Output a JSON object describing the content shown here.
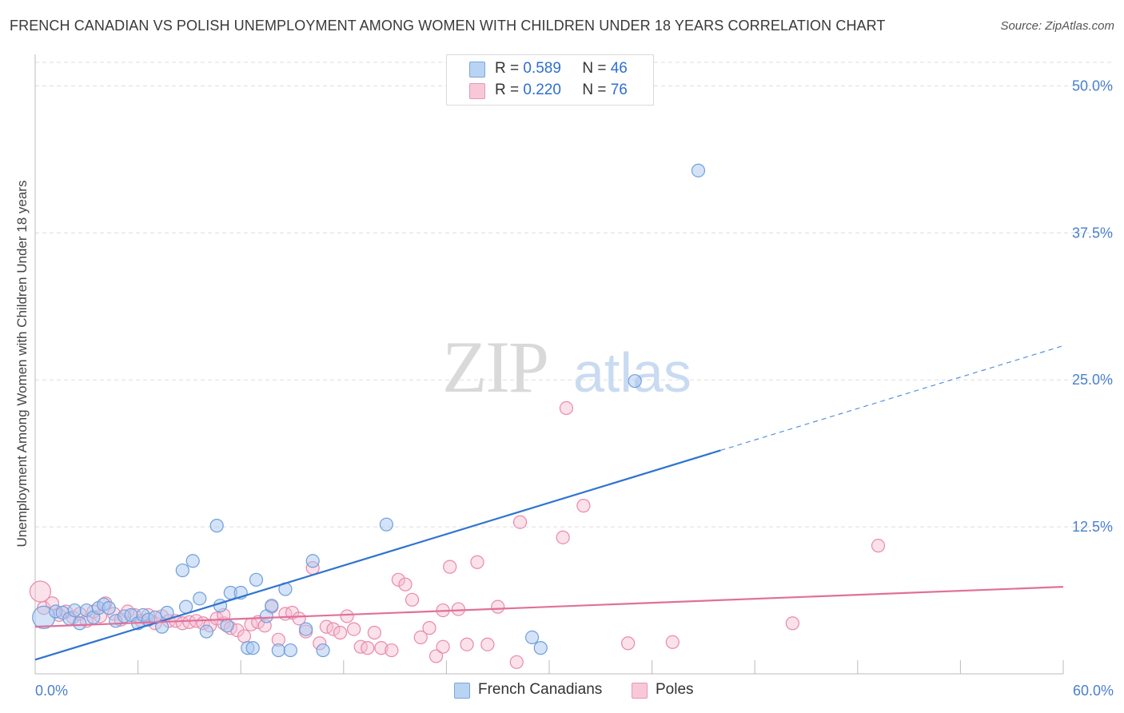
{
  "header": {
    "title": "FRENCH CANADIAN VS POLISH UNEMPLOYMENT AMONG WOMEN WITH CHILDREN UNDER 18 YEARS CORRELATION CHART",
    "source": "Source: ZipAtlas.com"
  },
  "watermark": {
    "zip": "ZIP",
    "atlas": "atlas"
  },
  "legend": {
    "french": {
      "r_label": "R =",
      "r_value": "0.589",
      "n_label": "N =",
      "n_value": "46"
    },
    "poles": {
      "r_label": "R =",
      "r_value": "0.220",
      "n_label": "N =",
      "n_value": "76"
    }
  },
  "bottom_legend": {
    "french": "French Canadians",
    "poles": "Poles"
  },
  "colors": {
    "french_fill": "#aac8f0",
    "french_stroke": "#6f9fdc",
    "french_line": "#2f74d0",
    "poles_fill": "#f6bcd0",
    "poles_stroke": "#e88aab",
    "poles_line": "#e0709a",
    "tick_text": "#4a7fcf",
    "grid": "#dddddd"
  },
  "chart_data": {
    "type": "scatter",
    "title": "FRENCH CANADIAN VS POLISH UNEMPLOYMENT AMONG WOMEN WITH CHILDREN UNDER 18 YEARS CORRELATION CHART",
    "xlabel": "",
    "ylabel": "Unemployment Among Women with Children Under 18 years",
    "xlim": [
      0,
      60
    ],
    "ylim": [
      0,
      52
    ],
    "x_tick_labels": [
      "0.0%",
      "60.0%"
    ],
    "y_ticks": [
      12.5,
      25.0,
      37.5,
      50.0
    ],
    "y_tick_labels": [
      "12.5%",
      "25.0%",
      "37.5%",
      "50.0%"
    ],
    "series": [
      {
        "name": "French Canadians",
        "r": 0.589,
        "n": 46,
        "trend": {
          "x0": 0,
          "y0": 1.2,
          "x1": 40,
          "y1": 19.0,
          "dashed_to_x": 60,
          "dashed_to_y": 27.9
        },
        "points": [
          [
            0.5,
            4.8
          ],
          [
            1.2,
            5.3
          ],
          [
            1.6,
            5.2
          ],
          [
            2.0,
            4.7
          ],
          [
            2.3,
            5.4
          ],
          [
            2.6,
            4.3
          ],
          [
            3.0,
            5.4
          ],
          [
            3.4,
            4.8
          ],
          [
            3.7,
            5.6
          ],
          [
            4.0,
            5.9
          ],
          [
            4.3,
            5.6
          ],
          [
            4.7,
            4.5
          ],
          [
            5.2,
            4.9
          ],
          [
            5.6,
            5.0
          ],
          [
            6.0,
            4.3
          ],
          [
            6.3,
            5.0
          ],
          [
            6.6,
            4.6
          ],
          [
            7.0,
            4.8
          ],
          [
            7.4,
            4.0
          ],
          [
            7.7,
            5.2
          ],
          [
            8.6,
            8.8
          ],
          [
            8.8,
            5.7
          ],
          [
            9.2,
            9.6
          ],
          [
            9.6,
            6.4
          ],
          [
            10.0,
            3.6
          ],
          [
            10.6,
            12.6
          ],
          [
            10.8,
            5.8
          ],
          [
            11.2,
            4.1
          ],
          [
            11.4,
            6.9
          ],
          [
            12.0,
            6.9
          ],
          [
            12.4,
            2.2
          ],
          [
            12.7,
            2.2
          ],
          [
            12.9,
            8.0
          ],
          [
            13.5,
            4.9
          ],
          [
            13.8,
            5.8
          ],
          [
            14.2,
            2.0
          ],
          [
            14.6,
            7.2
          ],
          [
            14.9,
            2.0
          ],
          [
            15.8,
            3.8
          ],
          [
            16.2,
            9.6
          ],
          [
            16.8,
            2.0
          ],
          [
            20.5,
            12.7
          ],
          [
            29.0,
            3.1
          ],
          [
            29.5,
            2.2
          ],
          [
            35.0,
            24.9
          ],
          [
            38.7,
            42.8
          ]
        ]
      },
      {
        "name": "Poles",
        "r": 0.22,
        "n": 76,
        "trend": {
          "x0": 0,
          "y0": 4.0,
          "x1": 60,
          "y1": 7.4
        },
        "points": [
          [
            0.3,
            7.0
          ],
          [
            0.5,
            5.6
          ],
          [
            1.0,
            6.0
          ],
          [
            1.4,
            5.0
          ],
          [
            1.8,
            5.3
          ],
          [
            2.2,
            4.8
          ],
          [
            2.6,
            5.1
          ],
          [
            3.0,
            4.5
          ],
          [
            3.4,
            5.3
          ],
          [
            3.8,
            4.9
          ],
          [
            4.1,
            6.0
          ],
          [
            4.6,
            5.1
          ],
          [
            5.0,
            4.6
          ],
          [
            5.4,
            5.3
          ],
          [
            5.8,
            5.0
          ],
          [
            6.2,
            4.5
          ],
          [
            6.6,
            5.0
          ],
          [
            7.0,
            4.3
          ],
          [
            7.4,
            4.9
          ],
          [
            7.8,
            4.5
          ],
          [
            8.2,
            4.5
          ],
          [
            8.6,
            4.3
          ],
          [
            9.0,
            4.4
          ],
          [
            9.4,
            4.5
          ],
          [
            9.8,
            4.3
          ],
          [
            10.2,
            4.1
          ],
          [
            10.6,
            4.7
          ],
          [
            11.0,
            4.3
          ],
          [
            11.4,
            3.9
          ],
          [
            11.8,
            3.7
          ],
          [
            12.2,
            3.2
          ],
          [
            12.6,
            4.2
          ],
          [
            13.0,
            4.4
          ],
          [
            13.4,
            4.1
          ],
          [
            13.8,
            5.7
          ],
          [
            14.2,
            2.9
          ],
          [
            14.6,
            5.1
          ],
          [
            15.0,
            5.2
          ],
          [
            15.4,
            4.7
          ],
          [
            15.8,
            3.6
          ],
          [
            16.2,
            9.0
          ],
          [
            16.6,
            2.6
          ],
          [
            17.0,
            4.0
          ],
          [
            17.4,
            3.8
          ],
          [
            17.8,
            3.5
          ],
          [
            18.2,
            4.9
          ],
          [
            18.6,
            3.8
          ],
          [
            19.0,
            2.3
          ],
          [
            19.4,
            2.2
          ],
          [
            19.8,
            3.5
          ],
          [
            20.2,
            2.2
          ],
          [
            20.8,
            2.0
          ],
          [
            21.2,
            8.0
          ],
          [
            21.6,
            7.6
          ],
          [
            22.0,
            6.3
          ],
          [
            22.5,
            3.1
          ],
          [
            23.0,
            3.9
          ],
          [
            23.4,
            1.5
          ],
          [
            23.8,
            2.3
          ],
          [
            24.2,
            9.1
          ],
          [
            24.7,
            5.5
          ],
          [
            25.2,
            2.5
          ],
          [
            25.8,
            9.5
          ],
          [
            26.4,
            2.5
          ],
          [
            27.0,
            5.7
          ],
          [
            28.1,
            1.0
          ],
          [
            28.3,
            12.9
          ],
          [
            30.8,
            11.6
          ],
          [
            32.0,
            14.3
          ],
          [
            34.6,
            2.6
          ],
          [
            37.2,
            2.7
          ],
          [
            44.2,
            4.3
          ],
          [
            49.2,
            10.9
          ],
          [
            23.8,
            5.4
          ],
          [
            11.0,
            5.0
          ],
          [
            31.0,
            22.6
          ]
        ]
      }
    ]
  }
}
